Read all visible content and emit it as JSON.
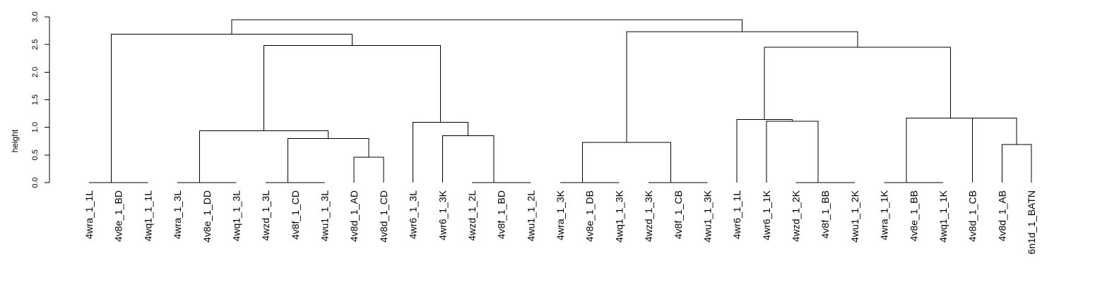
{
  "chart_data": {
    "type": "dendrogram",
    "title": "",
    "xlabel": "",
    "ylabel": "height",
    "ylim": [
      0,
      3.0
    ],
    "yticks": [
      "0.0",
      "0.5",
      "1.0",
      "1.5",
      "2.0",
      "2.5",
      "3.0"
    ],
    "grid": false,
    "leaves": [
      "4wra_1_1L",
      "4v8e_1_BD",
      "4wq1_1_1L",
      "4wra_1_3L",
      "4v8e_1_DD",
      "4wq1_1_3L",
      "4wzd_1_3L",
      "4v8f_1_CD",
      "4wu1_1_3L",
      "4v8d_1_AD",
      "4v8d_1_CD",
      "4wr6_1_3L",
      "4wr6_1_3K",
      "4wzd_1_2L",
      "4v8f_1_BD",
      "4wu1_1_2L",
      "4wra_1_3K",
      "4v8e_1_DB",
      "4wq1_1_3K",
      "4wzd_1_3K",
      "4v8f_1_CB",
      "4wu1_1_3K",
      "4wr6_1_1L",
      "4wr6_1_1K",
      "4wzd_1_2K",
      "4v8f_1_BB",
      "4wu1_1_2K",
      "4wra_1_1K",
      "4v8e_1_BB",
      "4wq1_1_1K",
      "4v8d_1_CB",
      "4v8d_1_AB",
      "6n1d_1_BATN"
    ],
    "merges": [
      {
        "left": "L1",
        "right": "L2",
        "height": 0.0
      },
      {
        "left": "L0",
        "right": "M0",
        "height": 0.0
      },
      {
        "left": "L4",
        "right": "L5",
        "height": 0.0
      },
      {
        "left": "L3",
        "right": "M2",
        "height": 0.0
      },
      {
        "left": "L7",
        "right": "L8",
        "height": 0.0
      },
      {
        "left": "L6",
        "right": "M4",
        "height": 0.0
      },
      {
        "left": "L14",
        "right": "L15",
        "height": 0.0
      },
      {
        "left": "L13",
        "right": "M6",
        "height": 0.0
      },
      {
        "left": "L17",
        "right": "L18",
        "height": 0.0
      },
      {
        "left": "L16",
        "right": "M8",
        "height": 0.0
      },
      {
        "left": "L20",
        "right": "L21",
        "height": 0.0
      },
      {
        "left": "L19",
        "right": "M10",
        "height": 0.0
      },
      {
        "left": "L25",
        "right": "L26",
        "height": 0.0
      },
      {
        "left": "L24",
        "right": "M12",
        "height": 0.0
      },
      {
        "left": "L28",
        "right": "L29",
        "height": 0.0
      },
      {
        "left": "L27",
        "right": "M14",
        "height": 0.0
      },
      {
        "left": "L9",
        "right": "L10",
        "height": 0.46
      },
      {
        "left": "L31",
        "right": "L32",
        "height": 0.69
      },
      {
        "left": "M9",
        "right": "M11",
        "height": 0.73
      },
      {
        "left": "M5",
        "right": "M16",
        "height": 0.8
      },
      {
        "left": "L12",
        "right": "M7",
        "height": 0.85
      },
      {
        "left": "M3",
        "right": "M19",
        "height": 0.94
      },
      {
        "left": "L11",
        "right": "M20",
        "height": 1.09
      },
      {
        "left": "L23",
        "right": "M13",
        "height": 1.11
      },
      {
        "left": "L22",
        "right": "M23",
        "height": 1.14
      },
      {
        "left": "L30",
        "right": "M17",
        "height": 1.17
      },
      {
        "left": "M15",
        "right": "M25",
        "height": 1.17
      },
      {
        "left": "M24",
        "right": "M26",
        "height": 2.45
      },
      {
        "left": "M21",
        "right": "M22",
        "height": 2.48
      },
      {
        "left": "M1",
        "right": "M28",
        "height": 2.69
      },
      {
        "left": "M18",
        "right": "M27",
        "height": 2.73
      },
      {
        "left": "M29",
        "right": "M30",
        "height": 2.95
      }
    ]
  }
}
